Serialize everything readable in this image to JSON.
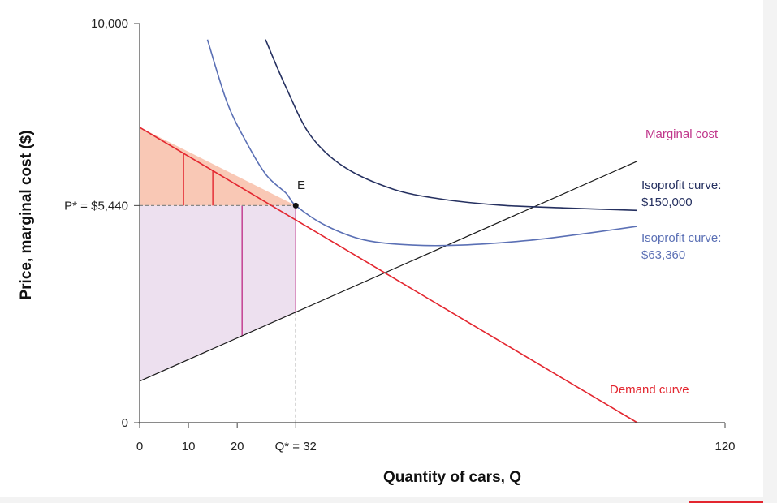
{
  "chart_data": {
    "type": "line",
    "xlabel": "Quantity of cars, Q",
    "ylabel": "Price, marginal cost ($)",
    "xlim": [
      0,
      120
    ],
    "ylim": [
      0,
      10000
    ],
    "x_ticks": [
      {
        "value": 0,
        "label": "0"
      },
      {
        "value": 10,
        "label": "10"
      },
      {
        "value": 20,
        "label": "20"
      },
      {
        "value": 32,
        "label": "Q* = 32"
      },
      {
        "value": 120,
        "label": "120"
      }
    ],
    "y_ticks": [
      {
        "value": 0,
        "label": "0"
      },
      {
        "value": 5440,
        "label": "P* = $5,440"
      },
      {
        "value": 10000,
        "label": "10,000"
      }
    ],
    "equilibrium": {
      "label": "E",
      "x": 32,
      "y": 5440
    },
    "series": [
      {
        "name": "Demand curve",
        "color": "#e3262f",
        "points": [
          [
            0,
            7400
          ],
          [
            102,
            0
          ]
        ]
      },
      {
        "name": "Marginal cost",
        "color": "#1a1a1a",
        "points": [
          [
            0,
            1040
          ],
          [
            102,
            6550
          ]
        ]
      },
      {
        "name": "Isoprofit curve: $150,000",
        "color": "#253060",
        "points": [
          [
            25.8,
            9600
          ],
          [
            30,
            8400
          ],
          [
            35,
            7200
          ],
          [
            42,
            6400
          ],
          [
            52,
            5850
          ],
          [
            62,
            5600
          ],
          [
            74,
            5450
          ],
          [
            87,
            5380
          ],
          [
            102,
            5320
          ]
        ]
      },
      {
        "name": "Isoprofit curve: $63,360",
        "color": "#5b70b5",
        "points": [
          [
            13.9,
            9600
          ],
          [
            18,
            8000
          ],
          [
            22,
            7000
          ],
          [
            26,
            6200
          ],
          [
            30,
            5750
          ],
          [
            32,
            5440
          ],
          [
            38,
            4950
          ],
          [
            46,
            4580
          ],
          [
            56,
            4450
          ],
          [
            66,
            4450
          ],
          [
            80,
            4570
          ],
          [
            92,
            4750
          ],
          [
            102,
            4920
          ]
        ]
      }
    ],
    "shaded_regions": [
      {
        "name": "consumer surplus",
        "color": "#f9c8b5"
      },
      {
        "name": "producer surplus",
        "color": "#ede0ef"
      }
    ],
    "colors": {
      "marginal_cost_label": "#c0368b",
      "isoprofit_150_label": "#253060",
      "isoprofit_63_label": "#5b70b5",
      "demand_label": "#e3262f",
      "cs_lines": "#e3262f",
      "ps_lines": "#c0368b",
      "axis": "#444444",
      "dashed": "#888888"
    },
    "curve_labels": {
      "marginal_cost": "Marginal cost",
      "isoprofit_150_line1": "Isoprofit curve:",
      "isoprofit_150_line2": "$150,000",
      "isoprofit_63_line1": "Isoprofit curve:",
      "isoprofit_63_line2": "$63,360",
      "demand": "Demand curve"
    }
  }
}
